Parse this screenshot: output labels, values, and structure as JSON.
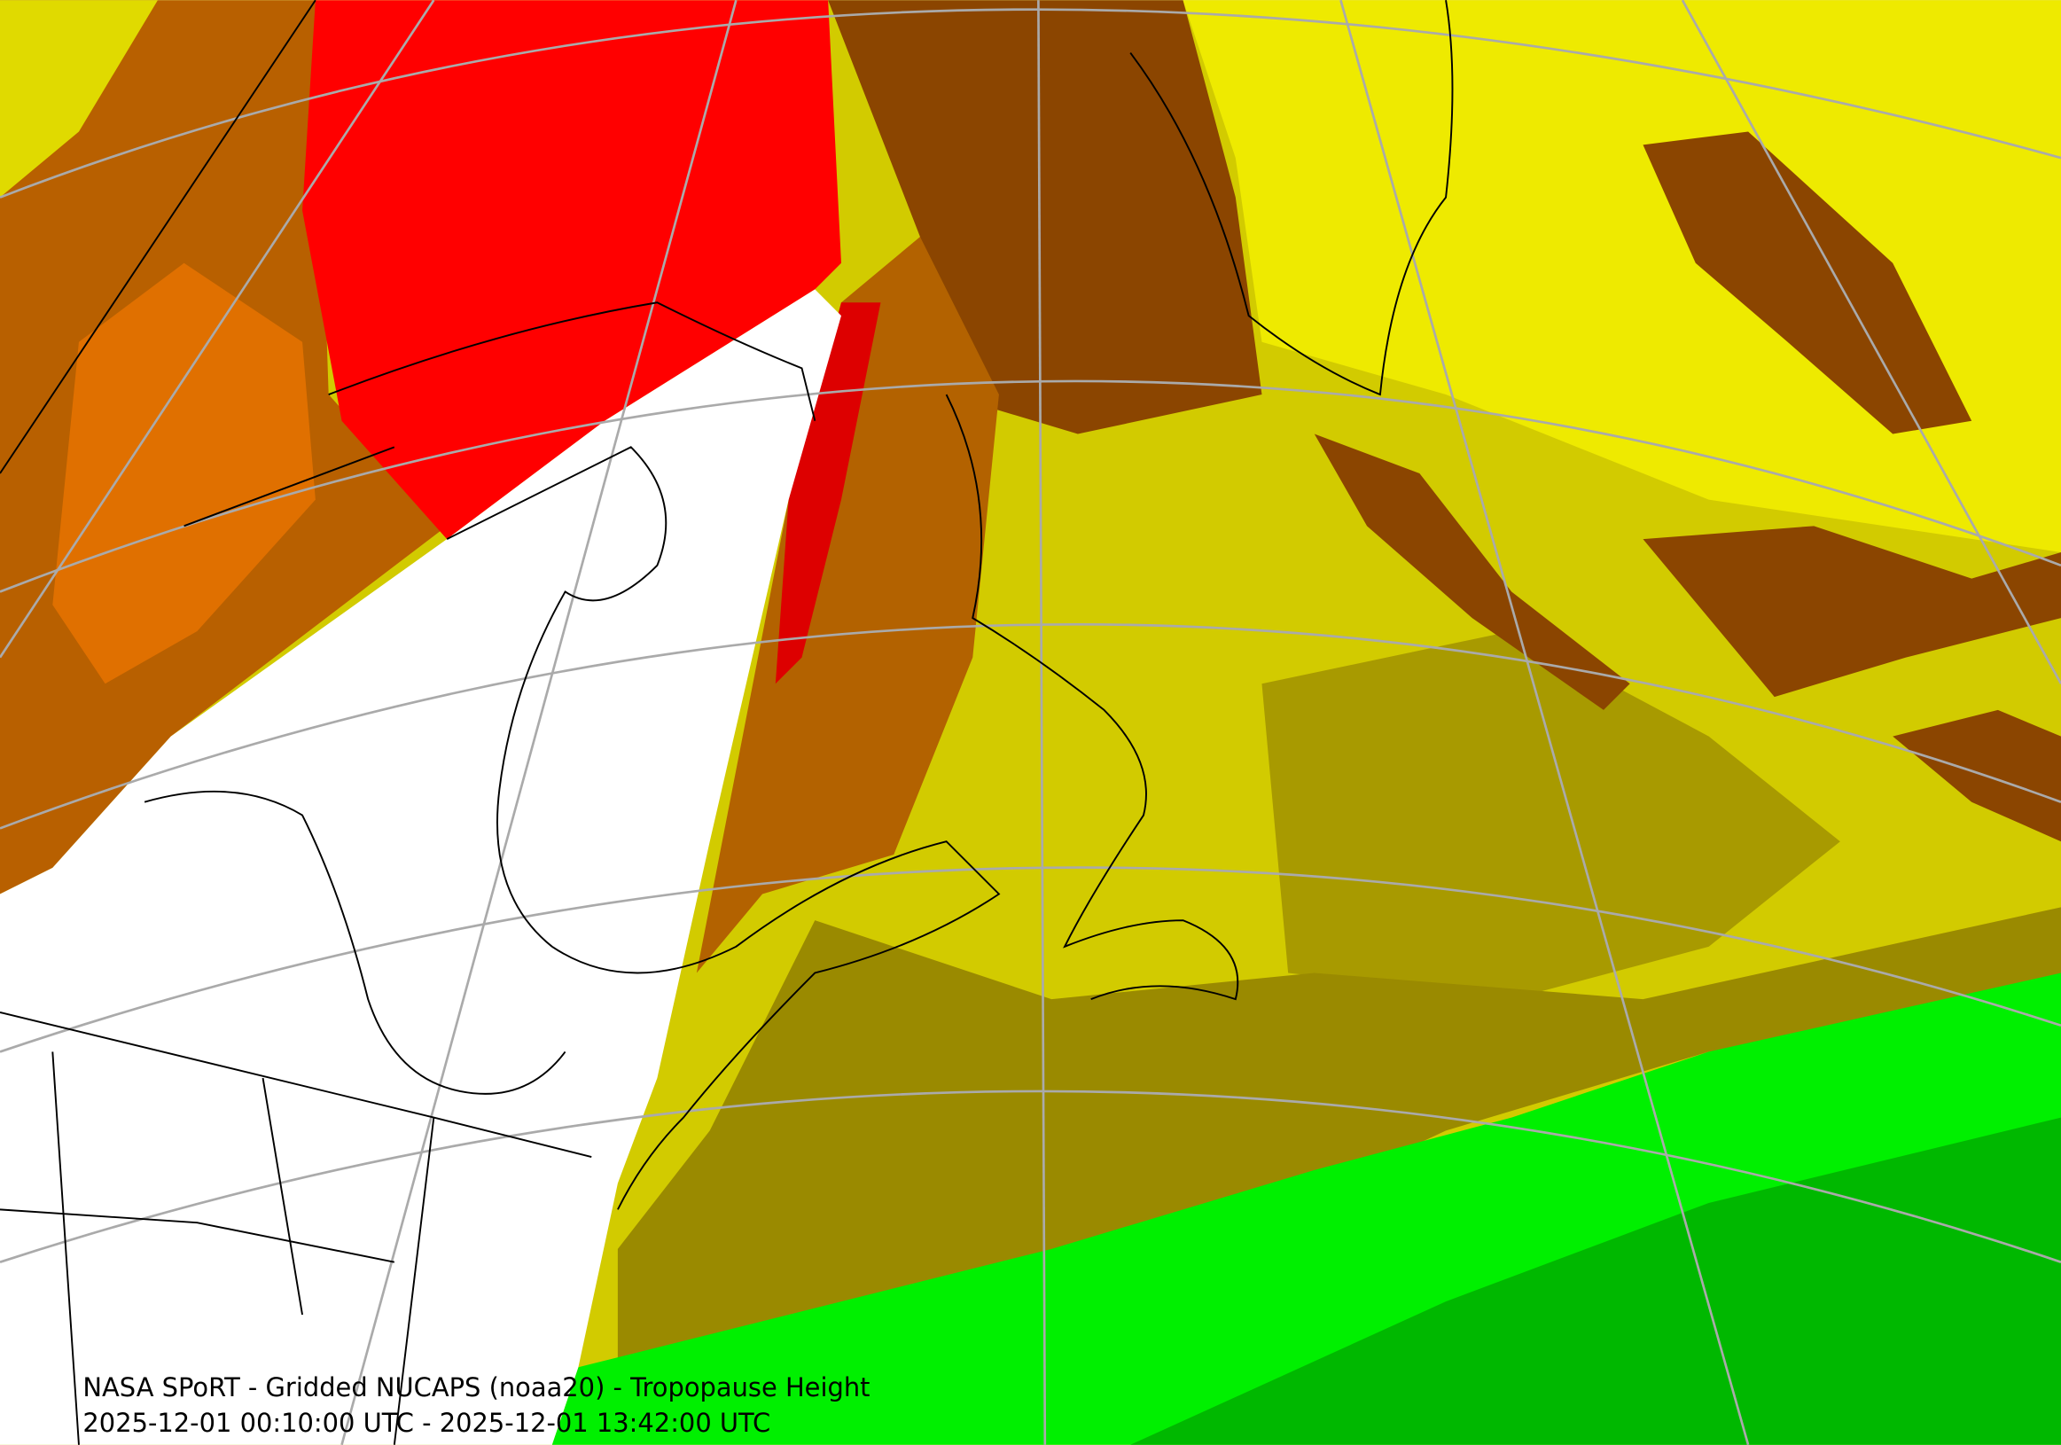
{
  "caption": {
    "title": "NASA SPoRT - Gridded NUCAPS (noaa20) - Tropopause Height",
    "time_range": "2025-12-01 00:10:00 UTC - 2025-12-01 13:42:00 UTC"
  }
}
